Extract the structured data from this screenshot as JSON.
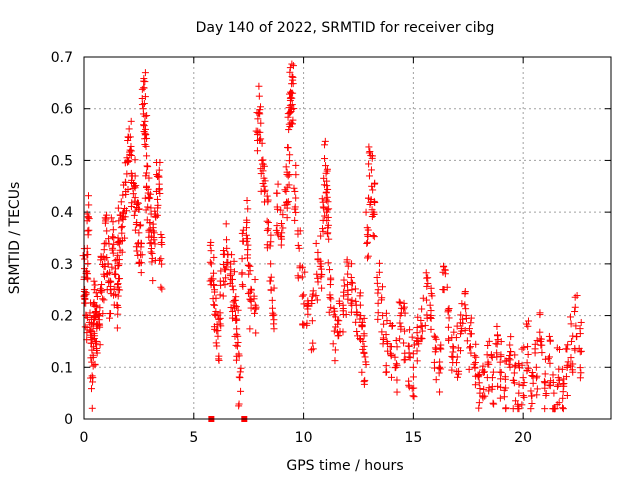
{
  "chart_data": {
    "type": "scatter",
    "title": "Day 140 of 2022, SRMTID for receiver cibg",
    "xlabel": "GPS time / hours",
    "ylabel": "SRMTID / TECUs",
    "xlim": [
      0,
      24
    ],
    "ylim": [
      0,
      0.7
    ],
    "xticks": [
      0,
      5,
      10,
      15,
      20
    ],
    "xtick_labels": [
      "0",
      "5",
      "10",
      "15",
      "20"
    ],
    "yticks": [
      0,
      0.1,
      0.2,
      0.3,
      0.4,
      0.5,
      0.6,
      0.7
    ],
    "ytick_labels": [
      "0",
      "0.1",
      "0.2",
      "0.3",
      "0.4",
      "0.5",
      "0.6",
      "0.7"
    ],
    "grid": true,
    "marker": "+",
    "marker_color": "#ff0000",
    "series": [
      {
        "name": "SRMTID",
        "x": [
          0.0,
          0.05,
          0.1,
          0.15,
          0.2,
          0.3,
          0.35,
          0.4,
          0.45,
          0.5,
          0.55,
          0.6,
          0.7,
          0.8,
          0.9,
          1.0,
          1.1,
          1.2,
          1.3,
          1.4,
          1.5,
          1.55,
          1.6,
          1.7,
          1.8,
          1.9,
          2.0,
          2.1,
          2.2,
          2.3,
          2.4,
          2.5,
          2.6,
          2.7,
          2.75,
          2.8,
          2.85,
          2.9,
          3.0,
          3.1,
          3.2,
          3.3,
          3.4,
          3.5,
          5.8,
          5.9,
          6.0,
          6.1,
          6.2,
          6.4,
          6.5,
          6.7,
          6.8,
          6.9,
          7.0,
          7.1,
          7.2,
          7.4,
          7.5,
          7.6,
          7.8,
          7.9,
          8.0,
          8.1,
          8.2,
          8.4,
          8.5,
          8.6,
          8.8,
          9.0,
          9.2,
          9.3,
          9.35,
          9.4,
          9.45,
          9.5,
          9.6,
          9.8,
          10.0,
          10.2,
          10.4,
          10.6,
          10.8,
          10.9,
          11.0,
          11.05,
          11.1,
          11.2,
          11.4,
          11.6,
          11.8,
          12.0,
          12.2,
          12.4,
          12.6,
          12.7,
          12.8,
          12.9,
          13.0,
          13.1,
          13.2,
          13.4,
          13.6,
          13.8,
          14.0,
          14.2,
          14.4,
          14.6,
          14.8,
          15.0,
          15.2,
          15.4,
          15.6,
          15.8,
          16.0,
          16.2,
          16.4,
          16.6,
          16.8,
          17.0,
          17.2,
          17.4,
          17.6,
          17.8,
          18.0,
          18.2,
          18.4,
          18.6,
          18.8,
          19.0,
          19.2,
          19.4,
          19.6,
          19.8,
          20.0,
          20.2,
          20.4,
          20.6,
          20.8,
          21.0,
          21.2,
          21.4,
          21.6,
          21.8,
          22.0,
          22.2,
          22.4,
          22.6
        ],
        "values": [
          0.27,
          0.24,
          0.2,
          0.33,
          0.39,
          0.17,
          0.11,
          0.08,
          0.2,
          0.22,
          0.15,
          0.18,
          0.2,
          0.26,
          0.28,
          0.34,
          0.3,
          0.25,
          0.33,
          0.28,
          0.22,
          0.35,
          0.3,
          0.37,
          0.4,
          0.44,
          0.5,
          0.52,
          0.47,
          0.45,
          0.38,
          0.36,
          0.34,
          0.6,
          0.61,
          0.56,
          0.45,
          0.41,
          0.38,
          0.32,
          0.36,
          0.44,
          0.47,
          0.31,
          0.3,
          0.26,
          0.2,
          0.16,
          0.24,
          0.29,
          0.33,
          0.27,
          0.25,
          0.2,
          0.16,
          0.08,
          0.31,
          0.37,
          0.28,
          0.23,
          0.22,
          0.55,
          0.59,
          0.5,
          0.45,
          0.38,
          0.3,
          0.2,
          0.41,
          0.36,
          0.44,
          0.47,
          0.57,
          0.62,
          0.63,
          0.63,
          0.44,
          0.33,
          0.24,
          0.22,
          0.19,
          0.28,
          0.3,
          0.41,
          0.49,
          0.46,
          0.36,
          0.24,
          0.17,
          0.19,
          0.22,
          0.26,
          0.25,
          0.22,
          0.2,
          0.15,
          0.12,
          0.37,
          0.47,
          0.45,
          0.4,
          0.25,
          0.2,
          0.15,
          0.14,
          0.1,
          0.2,
          0.17,
          0.12,
          0.1,
          0.15,
          0.18,
          0.23,
          0.2,
          0.13,
          0.1,
          0.25,
          0.21,
          0.14,
          0.12,
          0.17,
          0.2,
          0.14,
          0.1,
          0.07,
          0.09,
          0.11,
          0.08,
          0.12,
          0.09,
          0.06,
          0.1,
          0.07,
          0.05,
          0.08,
          0.14,
          0.03,
          0.1,
          0.15,
          0.07,
          0.12,
          0.05,
          0.08,
          0.04,
          0.1,
          0.15,
          0.18,
          0.13
        ]
      }
    ],
    "zero_markers": {
      "x": [
        5.8,
        7.3
      ],
      "values": [
        0,
        0
      ]
    }
  }
}
